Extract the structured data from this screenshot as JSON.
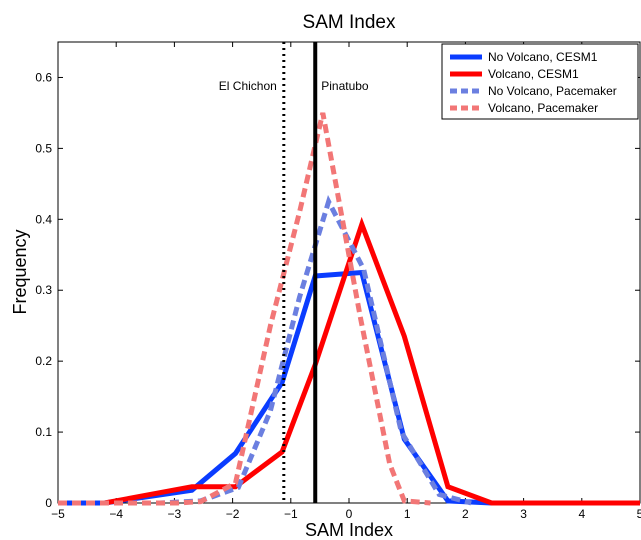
{
  "chart_data": {
    "type": "line",
    "title": "SAM Index",
    "xlabel": "SAM Index",
    "ylabel": "Frequency",
    "xlim": [
      -5,
      5
    ],
    "ylim": [
      0,
      0.65
    ],
    "xticks": [
      -5,
      -4,
      -3,
      -2,
      -1,
      0,
      1,
      2,
      3,
      4,
      5
    ],
    "xtick_labels": [
      "−5",
      "−4",
      "−3",
      "−2",
      "−1",
      "0",
      "1",
      "2",
      "3",
      "4",
      "5"
    ],
    "yticks": [
      0,
      0.1,
      0.2,
      0.3,
      0.4,
      0.5,
      0.6
    ],
    "ytick_labels": [
      "0",
      "0.1",
      "0.2",
      "0.3",
      "0.4",
      "0.5",
      "0.6"
    ],
    "grid": false,
    "legend_position": "top-right",
    "series": [
      {
        "name": "No Volcano, CESM1",
        "color": "#0a3cff",
        "style": "solid",
        "x": [
          -5,
          -4.2,
          -2.7,
          -1.95,
          -1.15,
          -0.58,
          0.22,
          0.95,
          1.7,
          2.45
        ],
        "y": [
          0,
          0,
          0.018,
          0.07,
          0.17,
          0.32,
          0.325,
          0.09,
          0.003,
          0
        ]
      },
      {
        "name": "Volcano, CESM1",
        "color": "#ff0000",
        "style": "solid",
        "x": [
          -4.2,
          -2.7,
          -1.95,
          -1.15,
          -0.58,
          0.22,
          0.95,
          1.7,
          2.45,
          5
        ],
        "y": [
          0,
          0.023,
          0.023,
          0.072,
          0.195,
          0.393,
          0.235,
          0.023,
          0,
          0
        ]
      },
      {
        "name": "No Volcano, Pacemaker",
        "color": "#6b7fe0",
        "style": "dashed",
        "x": [
          -5,
          -4.1,
          -3.25,
          -2.55,
          -1.9,
          -1.35,
          -0.85,
          -0.35,
          0.25,
          0.9,
          1.55,
          2.1
        ],
        "y": [
          0,
          0,
          0,
          0.003,
          0.022,
          0.13,
          0.29,
          0.425,
          0.33,
          0.1,
          0.012,
          0
        ]
      },
      {
        "name": "Volcano, Pacemaker",
        "color": "#f27676",
        "style": "dashed",
        "x": [
          -5,
          -4.1,
          -2.95,
          -2.55,
          -1.95,
          -1.35,
          -0.85,
          -0.45,
          0.2,
          0.7,
          0.95,
          1.4
        ],
        "y": [
          0,
          0,
          0,
          0.002,
          0.028,
          0.25,
          0.41,
          0.55,
          0.26,
          0.055,
          0.003,
          0
        ]
      }
    ],
    "reference_lines": [
      {
        "x": -1.12,
        "label": "El Chichon",
        "style": "dotted",
        "color": "#000000"
      },
      {
        "x": -0.58,
        "label": "Pinatubo",
        "style": "solid",
        "color": "#000000"
      }
    ]
  }
}
